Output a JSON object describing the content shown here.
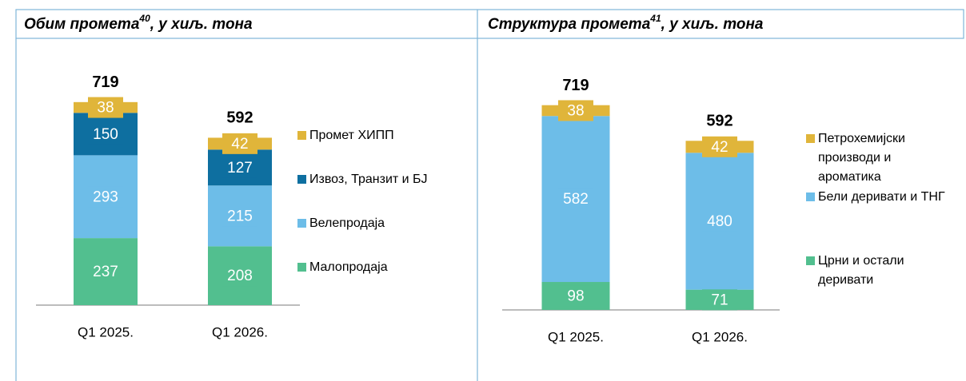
{
  "chart_data": [
    {
      "type": "bar",
      "stacked": true,
      "title": "Обим промета",
      "title_note": "40",
      "title_suffix": ", у хиљ. тона",
      "categories": [
        "Q1 2025.",
        "Q1 2026."
      ],
      "totals": [
        719,
        592
      ],
      "series": [
        {
          "name": "Малопродаја",
          "color": "#52bf8f",
          "values": [
            237,
            208
          ]
        },
        {
          "name": "Велепродаја",
          "color": "#6dbde8",
          "values": [
            293,
            215
          ]
        },
        {
          "name": "Извоз, Транзит и БЈ",
          "color": "#0e6fa0",
          "values": [
            150,
            127
          ]
        },
        {
          "name": "Промет ХИПП",
          "color": "#e0b53a",
          "values": [
            38,
            42
          ]
        }
      ]
    },
    {
      "type": "bar",
      "stacked": true,
      "title": "Структура промета",
      "title_note": "41",
      "title_suffix": ", у хиљ. тона",
      "categories": [
        "Q1 2025.",
        "Q1 2026."
      ],
      "totals": [
        719,
        592
      ],
      "series": [
        {
          "name": "Црни и остали деривати",
          "color": "#52bf8f",
          "values": [
            98,
            71
          ]
        },
        {
          "name": "Бели деривати и ТНГ",
          "color": "#6dbde8",
          "values": [
            582,
            480
          ]
        },
        {
          "name": "Петрохемијски производи и ароматика",
          "color": "#e0b53a",
          "values": [
            38,
            42
          ]
        }
      ]
    }
  ]
}
